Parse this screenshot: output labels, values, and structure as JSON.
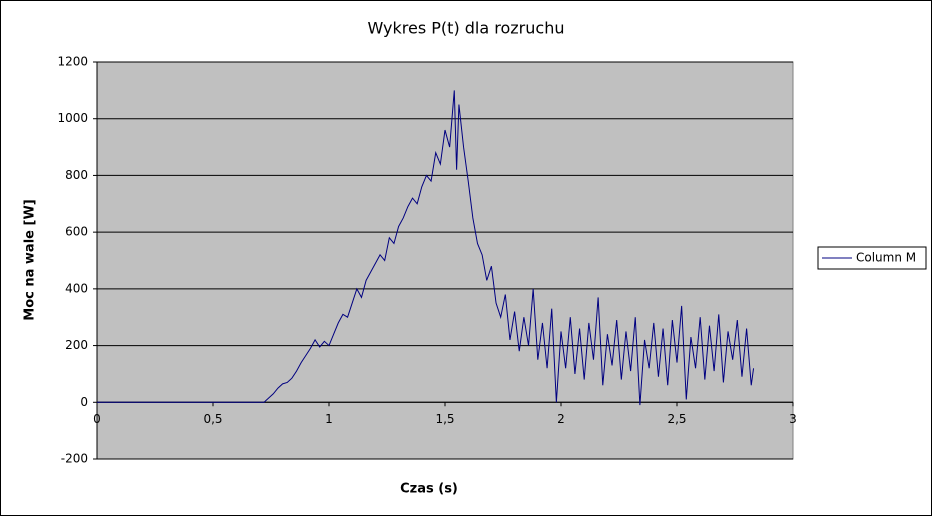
{
  "chart_data": {
    "type": "line",
    "title": "Wykres P(t) dla rozruchu",
    "x_label": "Czas (s)",
    "y_label": "Moc na wale [W]",
    "x": [
      0,
      0.7,
      0.72,
      0.74,
      0.76,
      0.78,
      0.8,
      0.82,
      0.84,
      0.86,
      0.88,
      0.9,
      0.92,
      0.94,
      0.96,
      0.98,
      1.0,
      1.02,
      1.04,
      1.06,
      1.08,
      1.1,
      1.12,
      1.14,
      1.16,
      1.18,
      1.2,
      1.22,
      1.24,
      1.26,
      1.28,
      1.3,
      1.32,
      1.34,
      1.36,
      1.38,
      1.4,
      1.42,
      1.44,
      1.46,
      1.48,
      1.5,
      1.52,
      1.54,
      1.55,
      1.56,
      1.58,
      1.6,
      1.62,
      1.64,
      1.66,
      1.68,
      1.7,
      1.72,
      1.74,
      1.76,
      1.78,
      1.8,
      1.82,
      1.84,
      1.86,
      1.88,
      1.9,
      1.92,
      1.94,
      1.96,
      1.98,
      2.0,
      2.02,
      2.04,
      2.06,
      2.08,
      2.1,
      2.12,
      2.14,
      2.16,
      2.18,
      2.2,
      2.22,
      2.24,
      2.26,
      2.28,
      2.3,
      2.32,
      2.34,
      2.36,
      2.38,
      2.4,
      2.42,
      2.44,
      2.46,
      2.48,
      2.5,
      2.52,
      2.54,
      2.56,
      2.58,
      2.6,
      2.62,
      2.64,
      2.66,
      2.68,
      2.7,
      2.72,
      2.74,
      2.76,
      2.78,
      2.8,
      2.82,
      2.83
    ],
    "series": [
      {
        "name": "Column M",
        "color": "#000080",
        "values": [
          0,
          0,
          0,
          15,
          30,
          50,
          65,
          70,
          85,
          110,
          140,
          165,
          190,
          220,
          195,
          215,
          200,
          240,
          280,
          310,
          300,
          350,
          400,
          370,
          430,
          460,
          490,
          520,
          500,
          580,
          560,
          620,
          650,
          690,
          720,
          700,
          760,
          800,
          780,
          880,
          840,
          960,
          900,
          1100,
          820,
          1050,
          900,
          780,
          650,
          560,
          520,
          430,
          480,
          350,
          300,
          380,
          220,
          320,
          180,
          300,
          200,
          400,
          150,
          280,
          120,
          330,
          0,
          250,
          120,
          300,
          100,
          260,
          80,
          280,
          150,
          370,
          60,
          240,
          130,
          290,
          80,
          250,
          110,
          300,
          -10,
          220,
          120,
          280,
          90,
          260,
          60,
          290,
          140,
          340,
          10,
          230,
          120,
          300,
          80,
          270,
          110,
          310,
          70,
          250,
          150,
          290,
          90,
          260,
          60,
          120
        ]
      }
    ],
    "xlim": [
      0,
      3
    ],
    "ylim": [
      -200,
      1200
    ],
    "xticks": [
      0,
      {
        "value": 0.5,
        "label": "0,5"
      },
      1,
      {
        "value": 1.5,
        "label": "1,5"
      },
      2,
      {
        "value": 2.5,
        "label": "2,5"
      },
      3
    ],
    "yticks": [
      -200,
      0,
      200,
      400,
      600,
      800,
      1000,
      1200
    ],
    "grid": true,
    "legend": "right"
  }
}
